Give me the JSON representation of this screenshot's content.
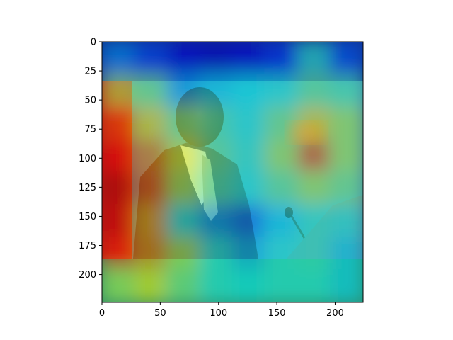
{
  "chart_data": {
    "type": "heatmap",
    "title": "",
    "xlabel": "",
    "ylabel": "",
    "xlim": [
      0,
      224
    ],
    "ylim": [
      224,
      0
    ],
    "x_ticks": [
      0,
      50,
      100,
      150,
      200
    ],
    "y_ticks": [
      0,
      25,
      50,
      75,
      100,
      125,
      150,
      175,
      200
    ],
    "colormap": "jet",
    "overlay": "heatmap over photograph of a man in a suit at a lectern with a microphone",
    "heatmap_grid": {
      "cols": [
        0,
        28,
        56,
        84,
        112,
        140,
        168,
        196,
        224
      ],
      "rows": [
        0,
        28,
        56,
        84,
        112,
        140,
        168,
        196,
        224
      ],
      "values": [
        [
          0.28,
          0.2,
          0.1,
          0.08,
          0.1,
          0.18,
          0.42,
          0.22,
          0.18
        ],
        [
          0.55,
          0.5,
          0.3,
          0.35,
          0.38,
          0.4,
          0.48,
          0.45,
          0.35
        ],
        [
          0.8,
          0.65,
          0.5,
          0.45,
          0.4,
          0.5,
          0.65,
          0.55,
          0.4
        ],
        [
          0.88,
          0.75,
          0.6,
          0.48,
          0.42,
          0.55,
          0.78,
          0.55,
          0.38
        ],
        [
          0.95,
          0.78,
          0.55,
          0.45,
          0.4,
          0.48,
          0.55,
          0.5,
          0.3
        ],
        [
          0.92,
          0.7,
          0.4,
          0.3,
          0.25,
          0.35,
          0.42,
          0.4,
          0.22
        ],
        [
          0.85,
          0.72,
          0.55,
          0.4,
          0.32,
          0.4,
          0.42,
          0.35,
          0.2
        ],
        [
          0.55,
          0.62,
          0.5,
          0.4,
          0.38,
          0.4,
          0.4,
          0.35,
          0.25
        ],
        [
          0.4,
          0.5,
          0.45,
          0.38,
          0.38,
          0.4,
          0.38,
          0.32,
          0.2
        ]
      ]
    },
    "grid": false,
    "legend": "none"
  }
}
